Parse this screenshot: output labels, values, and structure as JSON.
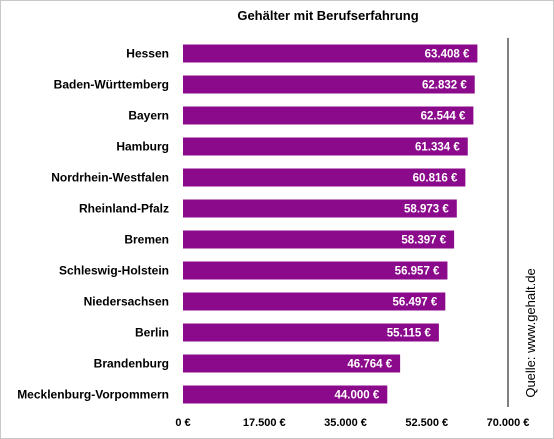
{
  "chart_data": {
    "type": "bar",
    "orientation": "horizontal",
    "title": "Gehälter mit Berufserfahrung",
    "categories": [
      "Hessen",
      "Baden-Württemberg",
      "Bayern",
      "Hamburg",
      "Nordrhein-Westfalen",
      "Rheinland-Pfalz",
      "Bremen",
      "Schleswig-Holstein",
      "Niedersachsen",
      "Berlin",
      "Brandenburg",
      "Mecklenburg-Vorpommern"
    ],
    "values": [
      63408,
      62832,
      62544,
      61334,
      60816,
      58973,
      58397,
      56957,
      56497,
      55115,
      46764,
      44000
    ],
    "value_labels": [
      "63.408 €",
      "62.832 €",
      "62.544 €",
      "61.334 €",
      "60.816 €",
      "58.973 €",
      "58.397 €",
      "56.957 €",
      "56.497 €",
      "55.115 €",
      "46.764 €",
      "44.000 €"
    ],
    "xlim": [
      0,
      70000
    ],
    "xticks": [
      0,
      17500,
      35000,
      52500,
      70000
    ],
    "xtick_labels": [
      "0 €",
      "17.500 €",
      "35.000 €",
      "52.500 €",
      "70.000 €"
    ],
    "bar_color": "#8b0a8b",
    "grid": false,
    "source_label": "Quelle: www.gehalt.de"
  }
}
